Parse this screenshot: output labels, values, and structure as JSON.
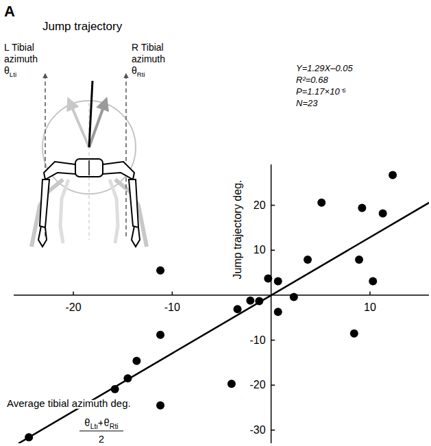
{
  "chart_data": {
    "type": "scatter",
    "panel": "A",
    "xlabel": "Average tibial azimuth deg.",
    "xlabel_formula": {
      "numerator": "θLti+θRti",
      "denominator": "2"
    },
    "ylabel": "Jump trajectory deg.",
    "annotations": [
      "Y=1.29X–0.05",
      "R²=0.68",
      "P=1.17×10⁻⁶",
      "N=23"
    ],
    "diagram": {
      "title": "Jump trajectory",
      "left_label": [
        "L Tibial",
        "azimuth",
        "θLti"
      ],
      "right_label": [
        "R Tibial",
        "azimuth",
        "θRti"
      ]
    },
    "x": [
      -24.5,
      -11.2,
      -15.8,
      -14.5,
      -13.6,
      -11.2,
      -11.2,
      -4.0,
      -3.4,
      -2.1,
      -1.2,
      -0.3,
      0.7,
      0.7,
      2.3,
      3.7,
      5.1,
      9.2,
      8.9,
      8.4,
      10.3,
      11.3,
      12.3
    ],
    "values": [
      -31.6,
      5.5,
      -20.9,
      -18.5,
      -14.6,
      -8.8,
      -24.5,
      -19.7,
      -3.1,
      -1.2,
      -1.3,
      3.7,
      3.1,
      -3.7,
      -0.4,
      7.9,
      20.6,
      19.4,
      7.9,
      -8.5,
      3.1,
      18.2,
      26.7
    ],
    "fit_line": {
      "x": [
        -25.5,
        16
      ],
      "y": [
        -32.9,
        20.6
      ]
    },
    "color": "#000000",
    "marker": "circle",
    "xlim": [
      -26,
      16
    ],
    "ylim": [
      -33,
      29
    ],
    "xticks": [
      -20,
      -10,
      10
    ],
    "yticks": [
      -30,
      -20,
      -10,
      10,
      20
    ]
  }
}
